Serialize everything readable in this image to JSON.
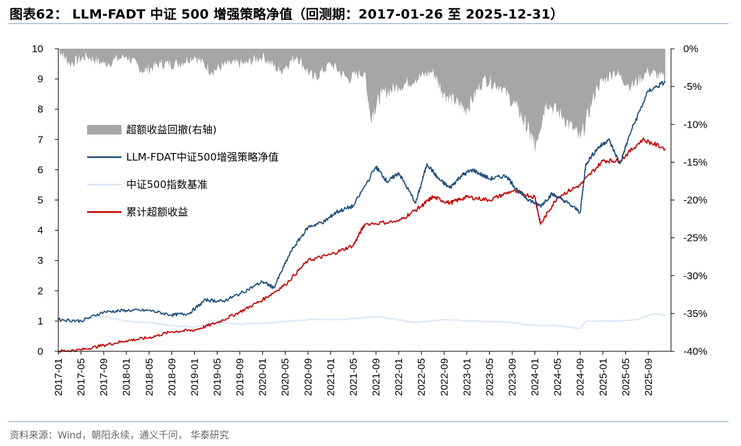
{
  "title": "图表62： LLM-FADT 中证 500 增强策略净值（回测期：2017-01-26 至 2025-12-31）",
  "source": "资料来源：Wind，朝阳永续，通义千问， 华泰研究",
  "colors": {
    "strategy": "#1f4e79",
    "benchmark": "#dbe7f5",
    "excess": "#c00000",
    "drawdown": "#a6a6a6",
    "rule": "#8aa6c8"
  },
  "chart_data": {
    "type": "line",
    "x_tick_labels": [
      "2017-01",
      "2017-05",
      "2017-09",
      "2018-01",
      "2018-05",
      "2018-09",
      "2019-01",
      "2019-05",
      "2019-09",
      "2020-01",
      "2020-05",
      "2020-09",
      "2021-01",
      "2021-05",
      "2021-09",
      "2022-01",
      "2022-05",
      "2022-09",
      "2023-01",
      "2023-05",
      "2023-09",
      "2024-01",
      "2024-05",
      "2024-09",
      "2025-01",
      "2025-05",
      "2025-09"
    ],
    "y_left": {
      "ylim": [
        0,
        10
      ],
      "ticks": [
        "0",
        "1",
        "2",
        "3",
        "4",
        "5",
        "6",
        "7",
        "8",
        "9",
        "10"
      ]
    },
    "y_right": {
      "ylim": [
        -40,
        0
      ],
      "ticks": [
        "0%",
        "-5%",
        "-10%",
        "-15%",
        "-20%",
        "-25%",
        "-30%",
        "-35%",
        "-40%"
      ]
    },
    "legend": [
      "超额收益回撤(右轴)",
      "LLM-FDAT中证500增强策略净值",
      "中证500指数基准",
      "累计超额收益"
    ],
    "series": [
      {
        "name": "LLM-FDAT中证500增强策略净值",
        "axis": "left",
        "x": [
          "2017-01",
          "2017-05",
          "2017-09",
          "2018-01",
          "2018-05",
          "2018-09",
          "2018-12",
          "2019-03",
          "2019-06",
          "2019-09",
          "2020-01",
          "2020-03",
          "2020-06",
          "2020-09",
          "2020-12",
          "2021-02",
          "2021-05",
          "2021-09",
          "2021-11",
          "2022-01",
          "2022-04",
          "2022-06",
          "2022-08",
          "2022-10",
          "2022-12",
          "2023-02",
          "2023-05",
          "2023-08",
          "2023-10",
          "2023-12",
          "2024-02",
          "2024-04",
          "2024-06",
          "2024-09",
          "2024-10",
          "2024-12",
          "2025-02",
          "2025-04",
          "2025-06",
          "2025-09",
          "2025-12"
        ],
        "values": [
          1.05,
          1.0,
          1.3,
          1.35,
          1.35,
          1.2,
          1.25,
          1.7,
          1.65,
          1.9,
          2.3,
          2.1,
          3.3,
          4.1,
          4.3,
          4.6,
          4.8,
          6.1,
          5.6,
          5.9,
          4.9,
          6.2,
          5.7,
          5.4,
          5.8,
          6.0,
          5.7,
          5.8,
          5.3,
          5.0,
          4.8,
          5.2,
          5.0,
          4.6,
          6.2,
          6.7,
          7.0,
          6.2,
          7.3,
          8.6,
          8.9
        ]
      },
      {
        "name": "中证500指数基准",
        "axis": "left",
        "x": [
          "2017-01",
          "2017-05",
          "2017-09",
          "2018-01",
          "2018-05",
          "2018-09",
          "2019-01",
          "2019-05",
          "2019-09",
          "2020-03",
          "2020-09",
          "2021-03",
          "2021-09",
          "2022-04",
          "2022-09",
          "2023-03",
          "2023-09",
          "2024-01",
          "2024-05",
          "2024-09",
          "2024-10",
          "2025-03",
          "2025-07",
          "2025-10",
          "2025-12"
        ],
        "values": [
          1.05,
          1.05,
          1.15,
          1.0,
          0.95,
          0.85,
          0.8,
          0.95,
          0.9,
          0.95,
          1.05,
          1.05,
          1.15,
          0.95,
          1.05,
          1.0,
          0.95,
          0.85,
          0.85,
          0.75,
          1.0,
          1.0,
          1.05,
          1.25,
          1.2
        ]
      },
      {
        "name": "累计超额收益",
        "axis": "left",
        "x": [
          "2017-01",
          "2017-05",
          "2017-09",
          "2018-01",
          "2018-05",
          "2018-09",
          "2019-01",
          "2019-05",
          "2019-09",
          "2020-01",
          "2020-05",
          "2020-09",
          "2021-01",
          "2021-05",
          "2021-07",
          "2022-01",
          "2022-05",
          "2022-07",
          "2022-10",
          "2023-01",
          "2023-05",
          "2023-09",
          "2024-01",
          "2024-02",
          "2024-05",
          "2024-09",
          "2025-01",
          "2025-04",
          "2025-08",
          "2025-12"
        ],
        "values": [
          0.0,
          0.05,
          0.2,
          0.35,
          0.45,
          0.65,
          0.7,
          0.95,
          1.3,
          1.7,
          2.2,
          3.0,
          3.2,
          3.5,
          4.2,
          4.3,
          4.8,
          5.1,
          4.9,
          5.1,
          5.0,
          5.3,
          5.1,
          4.2,
          5.1,
          5.5,
          6.3,
          6.3,
          7.0,
          6.7
        ]
      },
      {
        "name": "超额收益回撤(右轴)",
        "axis": "right",
        "x": [
          "2017-01",
          "2017-03",
          "2017-06",
          "2017-09",
          "2018-01",
          "2018-04",
          "2018-07",
          "2018-10",
          "2019-01",
          "2019-04",
          "2019-07",
          "2019-10",
          "2020-01",
          "2020-04",
          "2020-07",
          "2020-10",
          "2021-01",
          "2021-04",
          "2021-07",
          "2021-08",
          "2021-10",
          "2022-01",
          "2022-04",
          "2022-07",
          "2022-09",
          "2022-11",
          "2023-01",
          "2023-04",
          "2023-07",
          "2023-10",
          "2023-12",
          "2024-01",
          "2024-03",
          "2024-06",
          "2024-09",
          "2024-12",
          "2025-03",
          "2025-06",
          "2025-09",
          "2025-12"
        ],
        "values": [
          0,
          -2,
          -1,
          -2,
          -1,
          -3,
          -2,
          -2,
          -1,
          -3,
          -2,
          -2,
          -1,
          -3,
          -1,
          -4,
          -2,
          -4,
          -3,
          -9,
          -6,
          -5,
          -4,
          -3,
          -6,
          -7,
          -8,
          -4,
          -5,
          -8,
          -11,
          -13,
          -7,
          -9,
          -12,
          -5,
          -3,
          -5,
          -3,
          -4
        ]
      }
    ]
  }
}
